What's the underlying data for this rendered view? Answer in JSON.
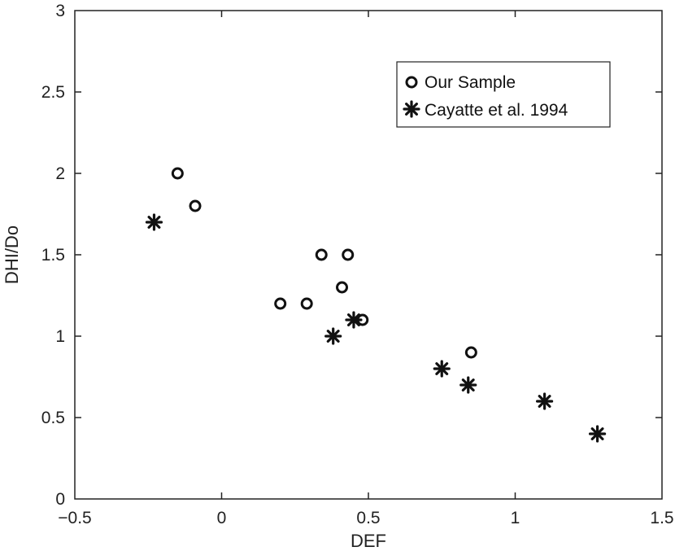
{
  "chart_data": {
    "type": "scatter",
    "title": "",
    "xlabel": "DEF",
    "ylabel": "DHI/Do",
    "xlim": [
      -0.5,
      1.5
    ],
    "ylim": [
      0,
      3
    ],
    "xticks": [
      -0.5,
      0,
      0.5,
      1,
      1.5
    ],
    "xtick_labels": [
      "−0.5",
      "0",
      "0.5",
      "1",
      "1.5"
    ],
    "yticks": [
      0,
      0.5,
      1,
      1.5,
      2,
      2.5,
      3
    ],
    "ytick_labels": [
      "0",
      "0.5",
      "1",
      "1.5",
      "2",
      "2.5",
      "3"
    ],
    "grid": false,
    "legend_position": "top-right",
    "series": [
      {
        "name": "Our Sample",
        "marker": "circle",
        "color": "#111111",
        "points": [
          [
            -0.15,
            2.0
          ],
          [
            -0.09,
            1.8
          ],
          [
            0.2,
            1.2
          ],
          [
            0.29,
            1.2
          ],
          [
            0.34,
            1.5
          ],
          [
            0.43,
            1.5
          ],
          [
            0.41,
            1.3
          ],
          [
            0.48,
            1.1
          ],
          [
            0.85,
            0.9
          ]
        ]
      },
      {
        "name": "Cayatte et al. 1994",
        "marker": "asterisk",
        "color": "#111111",
        "points": [
          [
            -0.23,
            1.7
          ],
          [
            0.38,
            1.0
          ],
          [
            0.45,
            1.1
          ],
          [
            0.75,
            0.8
          ],
          [
            0.84,
            0.7
          ],
          [
            1.1,
            0.6
          ],
          [
            1.28,
            0.4
          ]
        ]
      }
    ]
  }
}
